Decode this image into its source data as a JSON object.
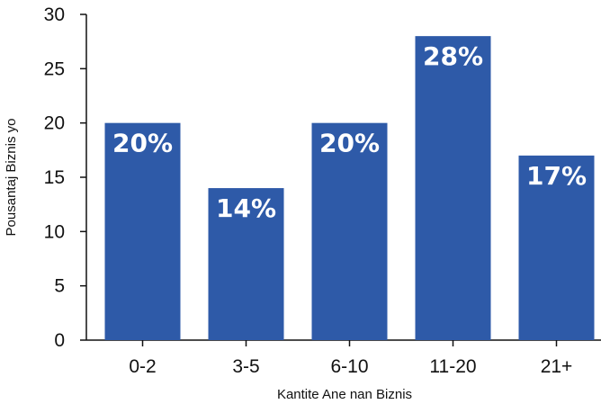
{
  "chart_data": {
    "type": "bar",
    "categories": [
      "0-2",
      "3-5",
      "6-10",
      "11-20",
      "21+"
    ],
    "values": [
      20,
      14,
      20,
      28,
      17
    ],
    "data_labels": [
      "20%",
      "14%",
      "20%",
      "28%",
      "17%"
    ],
    "title": "",
    "xlabel": "Kantite Ane nan Biznis",
    "ylabel": "Pousantaj Biznis yo",
    "ylim": [
      0,
      30
    ],
    "yticks": [
      0,
      5,
      10,
      15,
      20,
      25,
      30
    ],
    "grid": false,
    "legend": "none",
    "bar_color": "#2e5aa8"
  }
}
